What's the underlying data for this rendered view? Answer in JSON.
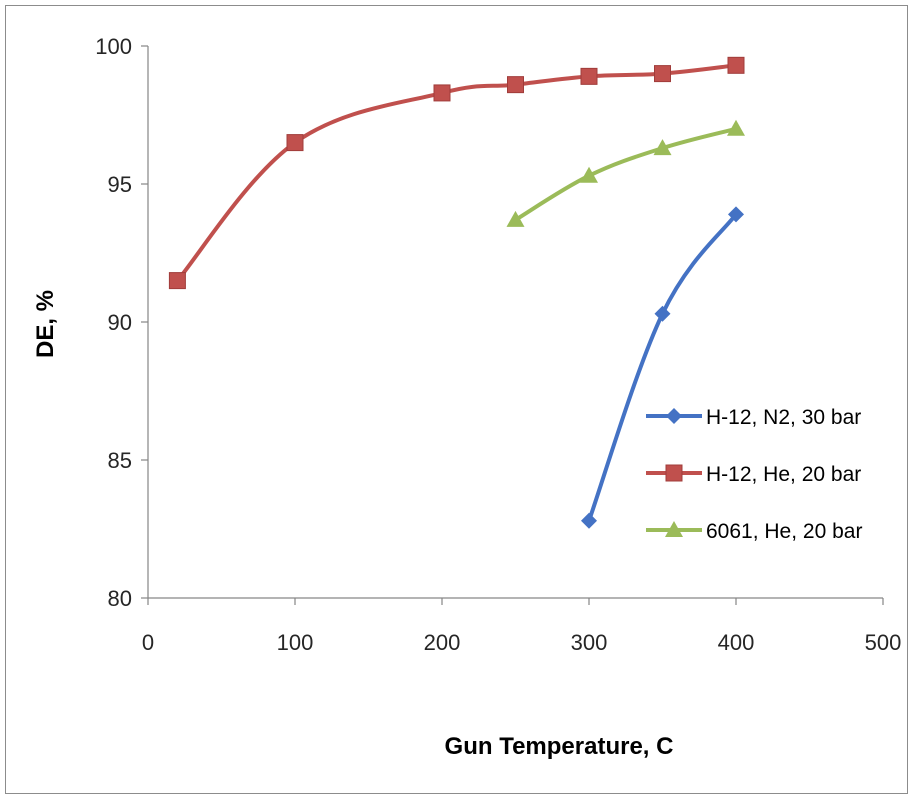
{
  "chart_data": {
    "type": "line",
    "title": "",
    "xlabel": "Gun Temperature, C",
    "ylabel": "DE, %",
    "xlim": [
      0,
      500
    ],
    "ylim": [
      80,
      100
    ],
    "xticks": [
      0,
      100,
      200,
      300,
      400,
      500
    ],
    "yticks": [
      80,
      85,
      90,
      95,
      100
    ],
    "grid": false,
    "legend_position": "right",
    "series": [
      {
        "name": "H-12, N2, 30 bar",
        "color": "#4472C4",
        "marker": "diamond",
        "points": [
          [
            300,
            82.8
          ],
          [
            350,
            90.3
          ],
          [
            400,
            93.9
          ]
        ]
      },
      {
        "name": "H-12, He, 20 bar",
        "color": "#C0504D",
        "marker": "square",
        "points": [
          [
            20,
            91.5
          ],
          [
            100,
            96.5
          ],
          [
            200,
            98.3
          ],
          [
            250,
            98.6
          ],
          [
            300,
            98.9
          ],
          [
            350,
            99.0
          ],
          [
            400,
            99.3
          ]
        ]
      },
      {
        "name": "6061, He, 20 bar",
        "color": "#9BBB59",
        "marker": "triangle",
        "points": [
          [
            250,
            93.7
          ],
          [
            300,
            95.3
          ],
          [
            350,
            96.3
          ],
          [
            400,
            97.0
          ]
        ]
      }
    ]
  }
}
